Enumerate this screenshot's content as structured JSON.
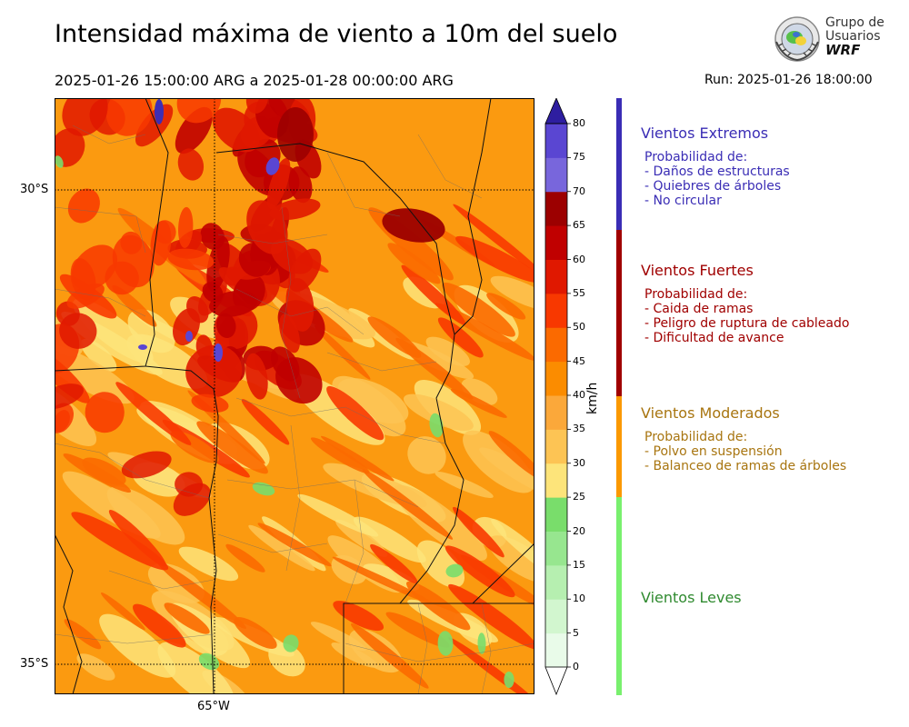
{
  "title": "Intensidad máxima de viento a 10m del suelo",
  "subtitle": "2025-01-26 15:00:00 ARG  a  2025-01-28 00:00:00 ARG",
  "run": "Run: 2025-01-26 18:00:00",
  "logo": {
    "line1": "Grupo de",
    "line2": "Usuarios",
    "line3": "WRF"
  },
  "axes": {
    "lat_ticks": [
      "30°S",
      "35°S"
    ],
    "lon_ticks": [
      "65°W"
    ]
  },
  "colorbar": {
    "unit": "km/h",
    "levels": [
      "0",
      "5",
      "10",
      "15",
      "20",
      "25",
      "30",
      "35",
      "40",
      "45",
      "50",
      "55",
      "60",
      "65",
      "70",
      "75",
      "80"
    ],
    "colors": [
      "#e9fbe9",
      "#d2f6cf",
      "#b6efb0",
      "#97e68f",
      "#79dd6b",
      "#fde47a",
      "#fdc454",
      "#fba83a",
      "#fb8c00",
      "#fb6a00",
      "#f83800",
      "#e01800",
      "#c00000",
      "#9c0000",
      "#7866dc",
      "#5a46d2",
      "#3e2eb4",
      "#2e1ea0"
    ]
  },
  "legend": [
    {
      "title": "Vientos Extremos",
      "color": "#3a2db5",
      "lines": [
        "Probabilidad de:",
        "- Daños de estructuras",
        "- Quiebres de árboles",
        "- No circular"
      ]
    },
    {
      "title": "Vientos Fuertes",
      "color": "#a00000",
      "lines": [
        "Probabilidad de:",
        "- Caida de ramas",
        "- Peligro de ruptura de cableado",
        "- Dificultad de avance"
      ]
    },
    {
      "title": "Vientos Moderados",
      "color": "#a87510",
      "lines": [
        "Probabilidad de:",
        "- Polvo en suspensión",
        "- Balanceo de ramas de árboles"
      ]
    },
    {
      "title": "Vientos Leves",
      "color": "#2f8a2f",
      "lines": []
    }
  ],
  "legend_bar_colors": [
    "#3a2db5",
    "#a00000",
    "#fb9900",
    "#79f06e"
  ]
}
